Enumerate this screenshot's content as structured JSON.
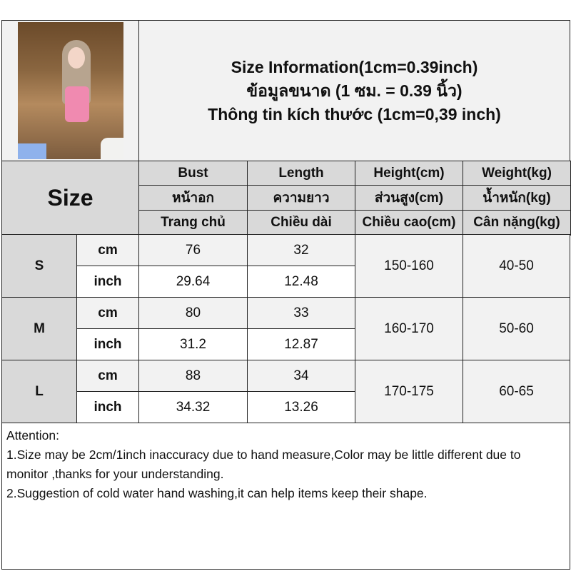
{
  "title": {
    "line1": "Size Information(1cm=0.39inch)",
    "line2": "ข้อมูลขนาด (1 ซม. = 0.39 นิ้ว)",
    "line3": "Thông tin kích thước (1cm=0,39 inch)"
  },
  "header": {
    "size_label": "Size",
    "columns": [
      {
        "en": "Bust",
        "th": "หน้าอก",
        "vi": "Trang chủ"
      },
      {
        "en": "Length",
        "th": "ความยาว",
        "vi": "Chiều dài"
      },
      {
        "en": "Height(cm)",
        "th": "ส่วนสูง(cm)",
        "vi": "Chiều cao(cm)"
      },
      {
        "en": "Weight(kg)",
        "th": "น้ำหนัก(kg)",
        "vi": "Cân nặng(kg)"
      }
    ]
  },
  "rows": [
    {
      "size": "S",
      "cm_label": "cm",
      "inch_label": "inch",
      "bust_cm": "76",
      "bust_inch": "29.64",
      "length_cm": "32",
      "length_inch": "12.48",
      "height": "150-160",
      "weight": "40-50"
    },
    {
      "size": "M",
      "cm_label": "cm",
      "inch_label": "inch",
      "bust_cm": "80",
      "bust_inch": "31.2",
      "length_cm": "33",
      "length_inch": "12.87",
      "height": "160-170",
      "weight": "50-60"
    },
    {
      "size": "L",
      "cm_label": "cm",
      "inch_label": "inch",
      "bust_cm": "88",
      "bust_inch": "34.32",
      "length_cm": "34",
      "length_inch": "13.26",
      "height": "170-175",
      "weight": "60-65"
    }
  ],
  "attention": {
    "heading": "Attention:",
    "note1": "1.Size may be 2cm/1inch inaccuracy due to hand measure,Color may be little different due to monitor ,thanks for your understanding.",
    "note2": "2.Suggestion of cold water hand washing,it can help items keep their shape."
  }
}
